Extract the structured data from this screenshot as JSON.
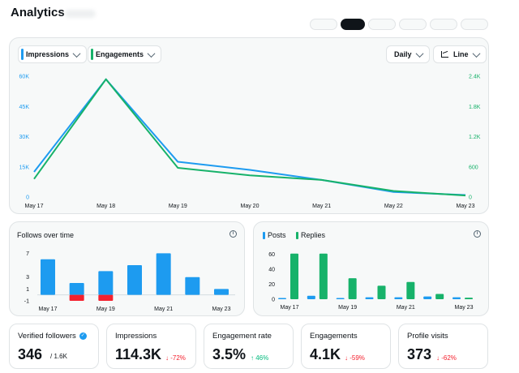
{
  "app": {
    "title": "Analytics"
  },
  "colors": {
    "impressions": "#1d9bf0",
    "engagements": "#17b26a",
    "negative": "#f4212e",
    "positive": "#00ba7c"
  },
  "toolbar": {
    "metric_a": "Impressions",
    "metric_b": "Engagements",
    "interval": "Daily",
    "chart_style": "Line"
  },
  "chart_data": [
    {
      "type": "line",
      "x": [
        "May 17",
        "May 18",
        "May 19",
        "May 20",
        "May 21",
        "May 22",
        "May 23"
      ],
      "series": [
        {
          "name": "Impressions",
          "axis": "left",
          "values": [
            12500,
            58500,
            17500,
            13500,
            8500,
            2500,
            1000
          ]
        },
        {
          "name": "Engagements",
          "axis": "right",
          "values": [
            360,
            2340,
            580,
            430,
            340,
            120,
            30
          ]
        }
      ],
      "y_left_ticks": [
        "0",
        "15K",
        "30K",
        "45K",
        "60K"
      ],
      "y_right_ticks": [
        "0",
        "600",
        "1.2K",
        "1.8K",
        "2.4K"
      ],
      "ylim_left": [
        0,
        60000
      ],
      "ylim_right": [
        0,
        2400
      ],
      "grid": false
    },
    {
      "type": "bar",
      "title": "Follows over time",
      "x": [
        "May 17",
        "May 18",
        "May 19",
        "May 20",
        "May 21",
        "May 22",
        "May 23"
      ],
      "x_tick_labels": [
        "May 17",
        "",
        "May 19",
        "",
        "May 21",
        "",
        "May 23"
      ],
      "series": [
        {
          "name": "Follows",
          "values": [
            6,
            2,
            4,
            5,
            7,
            3,
            1
          ]
        },
        {
          "name": "Unfollows",
          "values": [
            0,
            -1,
            -1,
            0,
            0,
            0,
            0
          ]
        }
      ],
      "y_ticks": [
        "-1",
        "1",
        "3",
        "7"
      ],
      "y_tick_values": [
        -1,
        1,
        3,
        7
      ],
      "ylim": [
        -1,
        7.6
      ]
    },
    {
      "type": "bar",
      "x": [
        "May 17",
        "May 18",
        "May 19",
        "May 20",
        "May 21",
        "May 22",
        "May 23"
      ],
      "x_tick_labels": [
        "May 17",
        "",
        "May 19",
        "",
        "May 21",
        "",
        "May 23"
      ],
      "legend": [
        "Posts",
        "Replies"
      ],
      "series": [
        {
          "name": "Posts",
          "values": [
            0,
            3,
            0,
            1,
            1,
            2,
            1
          ]
        },
        {
          "name": "Replies",
          "values": [
            61,
            61,
            28,
            18,
            23,
            7,
            2
          ]
        }
      ],
      "y_ticks": [
        "0",
        "20",
        "40",
        "60"
      ],
      "y_tick_values": [
        0,
        20,
        40,
        60
      ],
      "ylim": [
        0,
        65
      ]
    }
  ],
  "stats": [
    {
      "label": "Verified followers",
      "value": "346",
      "sub": "/ 1.6K",
      "verified": true
    },
    {
      "label": "Impressions",
      "value": "114.3K",
      "change": "↓ -72%",
      "direction": "down"
    },
    {
      "label": "Engagement rate",
      "value": "3.5%",
      "change": "↑ 46%",
      "direction": "up"
    },
    {
      "label": "Engagements",
      "value": "4.1K",
      "change": "↓ -59%",
      "direction": "down"
    },
    {
      "label": "Profile visits",
      "value": "373",
      "change": "↓ -62%",
      "direction": "down"
    }
  ]
}
